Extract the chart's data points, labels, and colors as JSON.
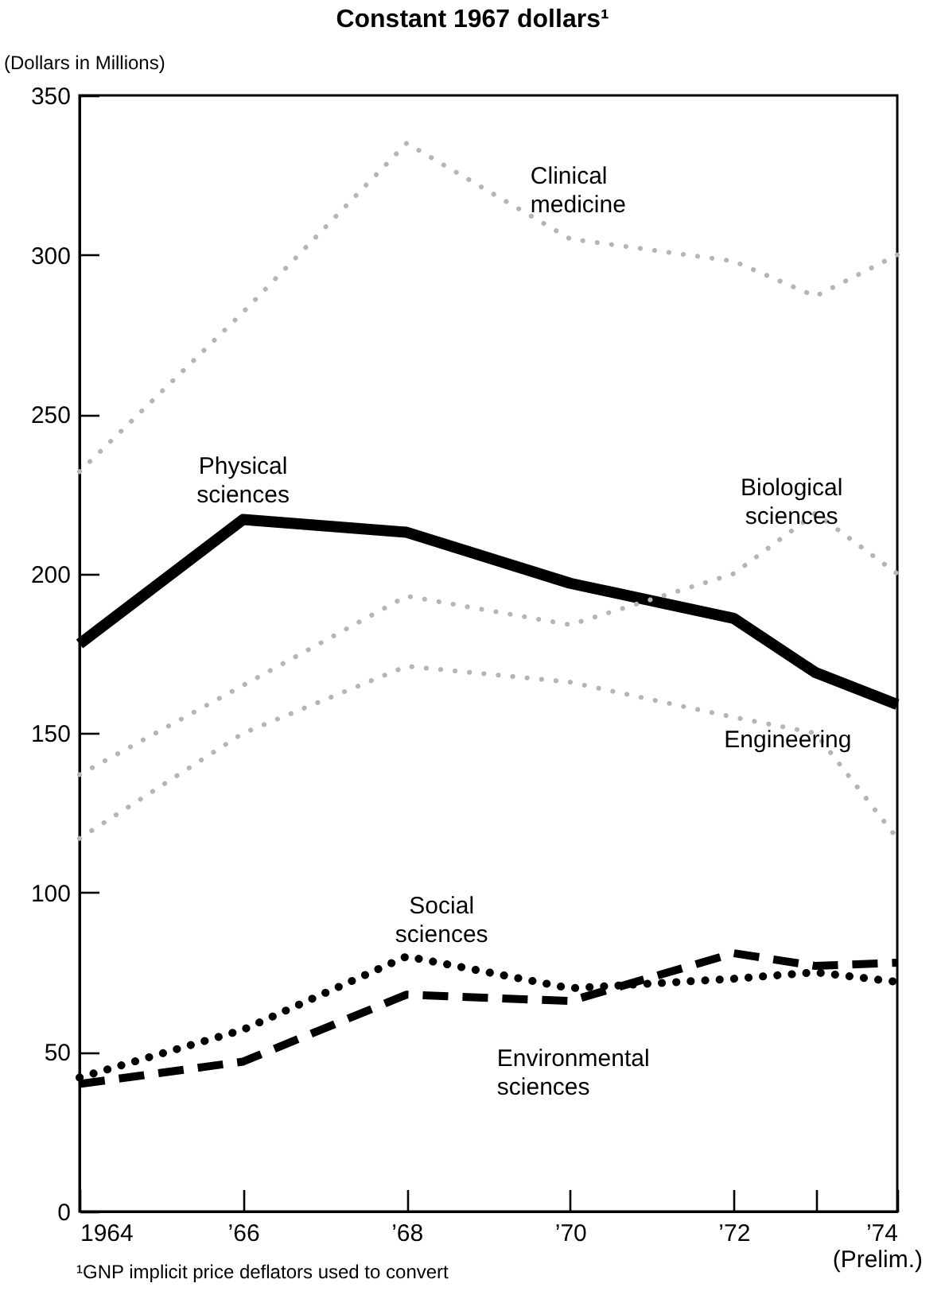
{
  "chart_data": {
    "type": "line",
    "title": "Constant 1967 dollars¹",
    "ylabel": "(Dollars in Millions)",
    "x": [
      1964,
      1966,
      1968,
      1970,
      1972,
      1973,
      1974
    ],
    "series": [
      {
        "name": "Clinical medicine",
        "color": "#b5b5b5",
        "line_style": "dotted",
        "values": [
          232,
          282,
          335,
          305,
          298,
          287,
          300
        ]
      },
      {
        "name": "Physical sciences",
        "color": "#000000",
        "line_style": "solid",
        "values": [
          178,
          217,
          213,
          197,
          186,
          169,
          159
        ]
      },
      {
        "name": "Biological sciences",
        "color": "#b5b5b5",
        "line_style": "dotted",
        "values": [
          137,
          165,
          193,
          184,
          200,
          219,
          200
        ]
      },
      {
        "name": "Engineering",
        "color": "#b5b5b5",
        "line_style": "dotted",
        "values": [
          117,
          150,
          171,
          166,
          155,
          150,
          117
        ]
      },
      {
        "name": "Social sciences",
        "color": "#000000",
        "line_style": "dotted",
        "values": [
          42,
          57,
          80,
          70,
          73,
          75,
          72
        ]
      },
      {
        "name": "Environmental sciences",
        "color": "#000000",
        "line_style": "dashed",
        "values": [
          40,
          47,
          68,
          66,
          81,
          77,
          78
        ]
      }
    ],
    "xlim": [
      1964,
      1974
    ],
    "xticks": [
      1964,
      {
        "value": 1966,
        "label": "’66"
      },
      {
        "value": 1968,
        "label": "’68"
      },
      {
        "value": 1970,
        "label": "’70"
      },
      {
        "value": 1972,
        "label": "’72"
      },
      {
        "value": 1973,
        "label": null
      },
      {
        "value": 1974,
        "label": "’74"
      }
    ],
    "ylim": [
      0,
      350
    ],
    "yticks": [
      0,
      50,
      100,
      150,
      200,
      250,
      300,
      350
    ],
    "grid": false,
    "annotations": [
      "(Prelim.)",
      "¹GNP implicit price deflators used to convert"
    ]
  }
}
